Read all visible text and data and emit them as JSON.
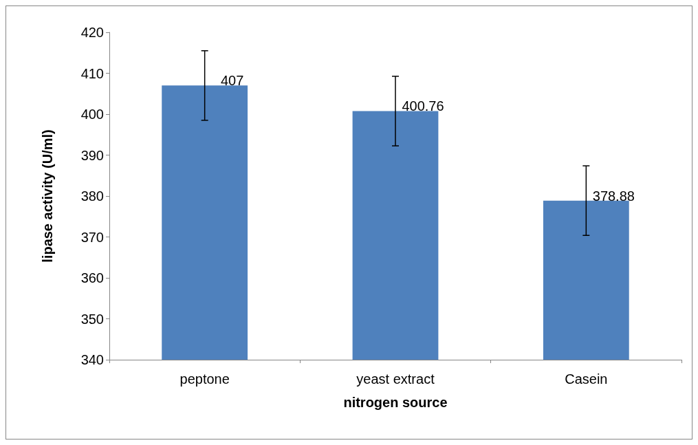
{
  "chart_data": {
    "type": "bar",
    "xlabel": "nitrogen source",
    "ylabel": "lipase activity (U/ml)",
    "categories": [
      "peptone",
      "yeast extract",
      "Casein"
    ],
    "values": [
      407,
      400.76,
      378.88
    ],
    "errors": [
      8.5,
      8.5,
      8.5
    ],
    "color": "#4f81bd",
    "ylim": [
      340,
      420
    ],
    "yticks": [
      340,
      350,
      360,
      370,
      380,
      390,
      400,
      410,
      420
    ],
    "data_labels": true,
    "grid": false
  }
}
